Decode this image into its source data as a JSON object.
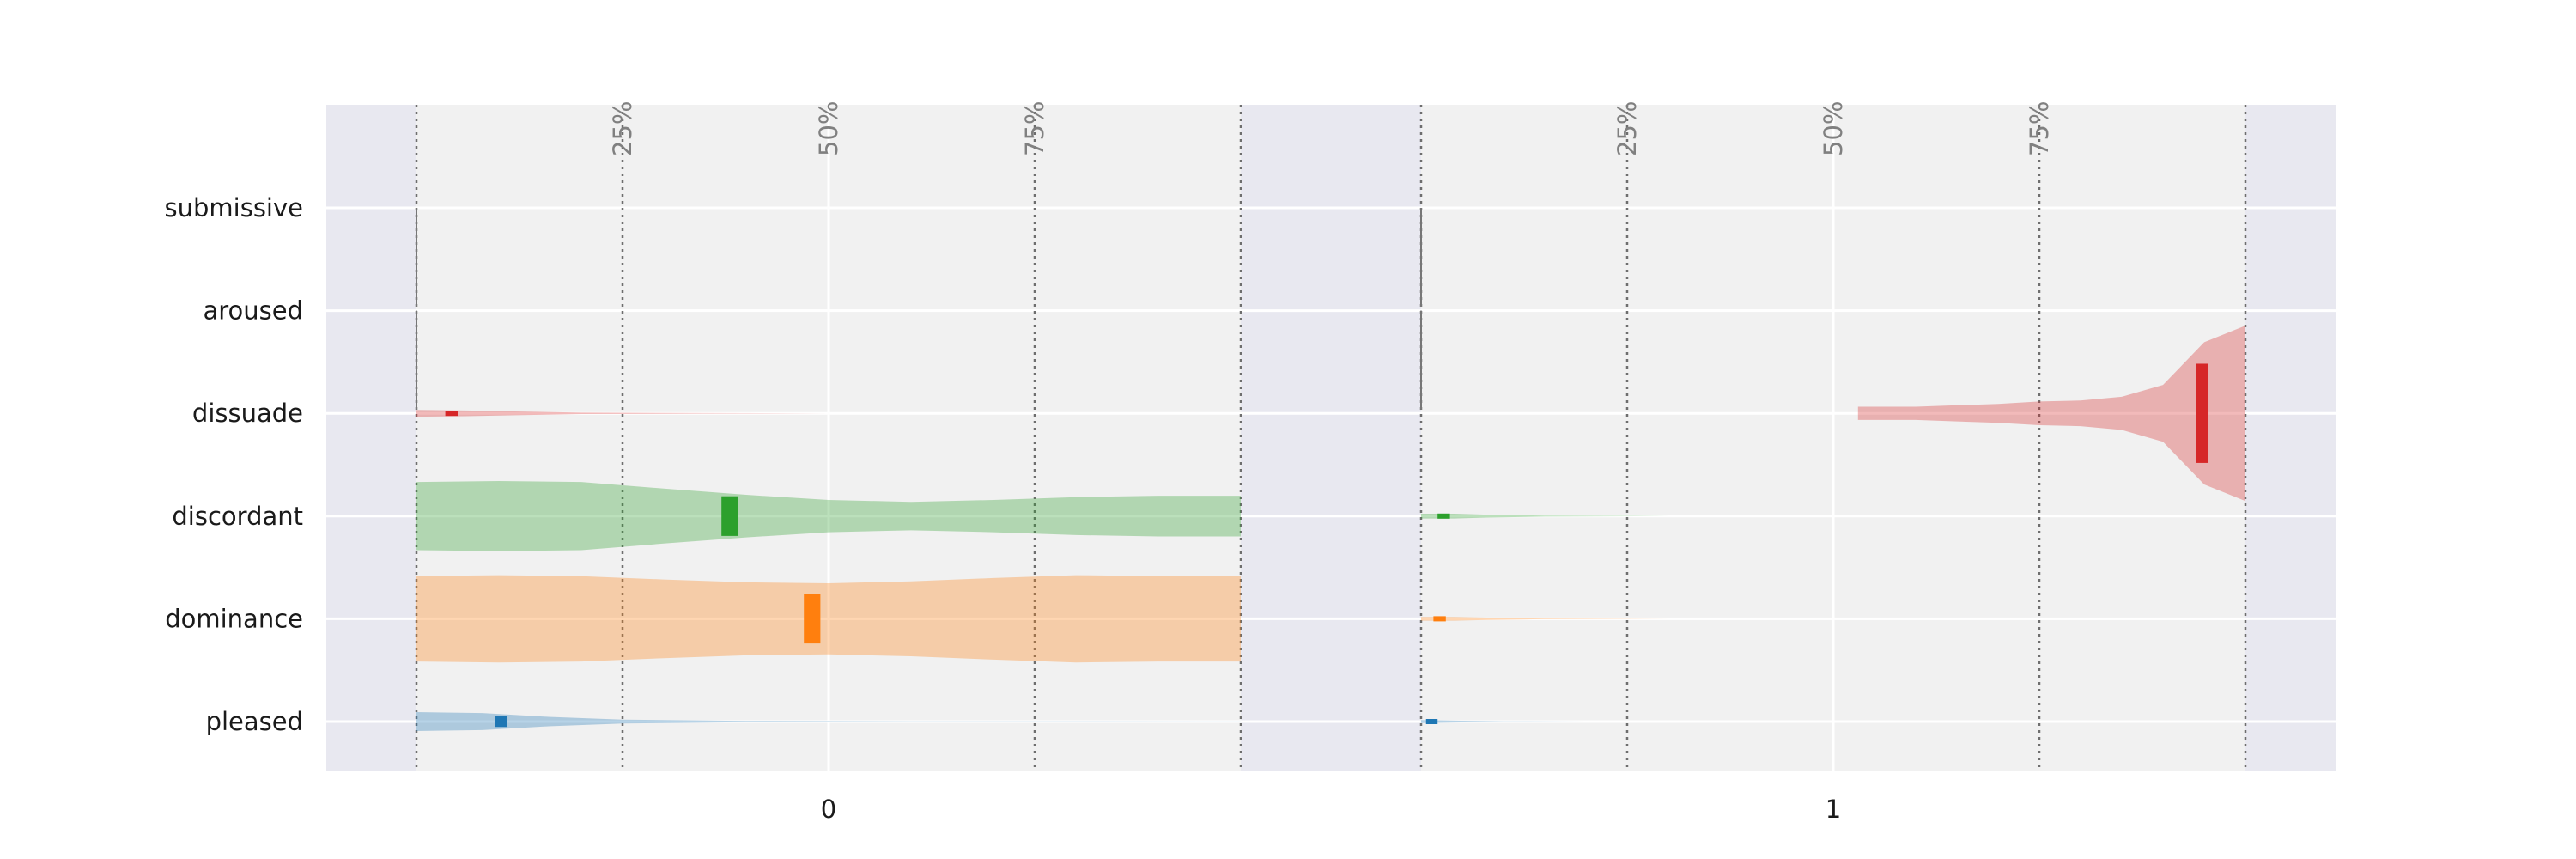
{
  "chart_data": {
    "type": "violin",
    "orientation": "horizontal",
    "rows": [
      "submissive",
      "aroused",
      "dissuade",
      "discordant",
      "dominance",
      "pleased"
    ],
    "x_categories": [
      "0",
      "1"
    ],
    "percentile_labels": [
      "25%",
      "50%",
      "75%"
    ],
    "value_range": [
      0,
      1
    ],
    "grid": true,
    "colors": {
      "pleased": "#1f77b4",
      "dominance": "#ff7f0e",
      "discordant": "#2ca02c",
      "dissuade": "#d62728",
      "aroused": "#555555",
      "submissive": "#555555"
    },
    "panels": [
      {
        "category": "0",
        "violins": [
          {
            "row": "submissive",
            "min": 0.0,
            "max": 0.0,
            "q1": 0.0,
            "q3": 0.0,
            "profile": [
              [
                0.0,
                0.01
              ],
              [
                0.0,
                0.01
              ]
            ]
          },
          {
            "row": "aroused",
            "min": 0.0,
            "max": 0.0,
            "q1": 0.0,
            "q3": 0.0,
            "profile": [
              [
                0.0,
                0.01
              ],
              [
                0.0,
                0.01
              ]
            ]
          },
          {
            "row": "dissuade",
            "min": 0.0,
            "max": 0.5,
            "q1": 0.035,
            "q3": 0.05,
            "profile": [
              [
                0.0,
                0.07
              ],
              [
                0.06,
                0.06
              ],
              [
                0.12,
                0.04
              ],
              [
                0.2,
                0.015
              ],
              [
                0.35,
                0.005
              ],
              [
                0.5,
                0.0
              ]
            ]
          },
          {
            "row": "discordant",
            "min": 0.0,
            "max": 1.0,
            "q1": 0.37,
            "q3": 0.39,
            "profile": [
              [
                0.0,
                0.72
              ],
              [
                0.1,
                0.74
              ],
              [
                0.2,
                0.72
              ],
              [
                0.3,
                0.58
              ],
              [
                0.4,
                0.45
              ],
              [
                0.5,
                0.34
              ],
              [
                0.6,
                0.3
              ],
              [
                0.7,
                0.34
              ],
              [
                0.8,
                0.4
              ],
              [
                0.9,
                0.43
              ],
              [
                1.0,
                0.43
              ]
            ]
          },
          {
            "row": "dominance",
            "min": 0.0,
            "max": 1.0,
            "q1": 0.47,
            "q3": 0.49,
            "profile": [
              [
                0.0,
                0.9
              ],
              [
                0.1,
                0.92
              ],
              [
                0.2,
                0.9
              ],
              [
                0.3,
                0.83
              ],
              [
                0.4,
                0.77
              ],
              [
                0.5,
                0.75
              ],
              [
                0.6,
                0.79
              ],
              [
                0.7,
                0.86
              ],
              [
                0.8,
                0.92
              ],
              [
                0.9,
                0.9
              ],
              [
                1.0,
                0.9
              ]
            ]
          },
          {
            "row": "pleased",
            "min": 0.0,
            "max": 1.0,
            "q1": 0.095,
            "q3": 0.11,
            "profile": [
              [
                0.0,
                0.2
              ],
              [
                0.08,
                0.18
              ],
              [
                0.16,
                0.1
              ],
              [
                0.25,
                0.04
              ],
              [
                0.4,
                0.015
              ],
              [
                0.6,
                0.006
              ],
              [
                1.0,
                0.002
              ]
            ]
          }
        ]
      },
      {
        "category": "1",
        "violins": [
          {
            "row": "submissive",
            "min": 0.0,
            "max": 0.0,
            "q1": 0.0,
            "q3": 0.0,
            "profile": [
              [
                0.0,
                0.01
              ],
              [
                0.0,
                0.01
              ]
            ]
          },
          {
            "row": "aroused",
            "min": 0.0,
            "max": 0.0,
            "q1": 0.0,
            "q3": 0.0,
            "profile": [
              [
                0.0,
                0.01
              ],
              [
                0.0,
                0.01
              ]
            ]
          },
          {
            "row": "dissuade",
            "min": 0.53,
            "max": 1.0,
            "q1": 0.94,
            "q3": 0.955,
            "profile": [
              [
                0.53,
                0.14
              ],
              [
                0.6,
                0.14
              ],
              [
                0.65,
                0.17
              ],
              [
                0.7,
                0.2
              ],
              [
                0.75,
                0.25
              ],
              [
                0.8,
                0.27
              ],
              [
                0.85,
                0.35
              ],
              [
                0.9,
                0.6
              ],
              [
                0.95,
                1.5
              ],
              [
                1.0,
                1.85
              ]
            ]
          },
          {
            "row": "discordant",
            "min": 0.0,
            "max": 0.3,
            "q1": 0.02,
            "q3": 0.035,
            "profile": [
              [
                0.0,
                0.05
              ],
              [
                0.04,
                0.05
              ],
              [
                0.08,
                0.03
              ],
              [
                0.15,
                0.01
              ],
              [
                0.3,
                0.0
              ]
            ]
          },
          {
            "row": "dominance",
            "min": 0.0,
            "max": 0.3,
            "q1": 0.015,
            "q3": 0.03,
            "profile": [
              [
                0.0,
                0.04
              ],
              [
                0.04,
                0.04
              ],
              [
                0.08,
                0.025
              ],
              [
                0.15,
                0.008
              ],
              [
                0.3,
                0.0
              ]
            ]
          },
          {
            "row": "pleased",
            "min": 0.0,
            "max": 0.2,
            "q1": 0.006,
            "q3": 0.02,
            "profile": [
              [
                0.0,
                0.03
              ],
              [
                0.04,
                0.02
              ],
              [
                0.1,
                0.005
              ],
              [
                0.2,
                0.0
              ]
            ]
          }
        ]
      }
    ]
  }
}
